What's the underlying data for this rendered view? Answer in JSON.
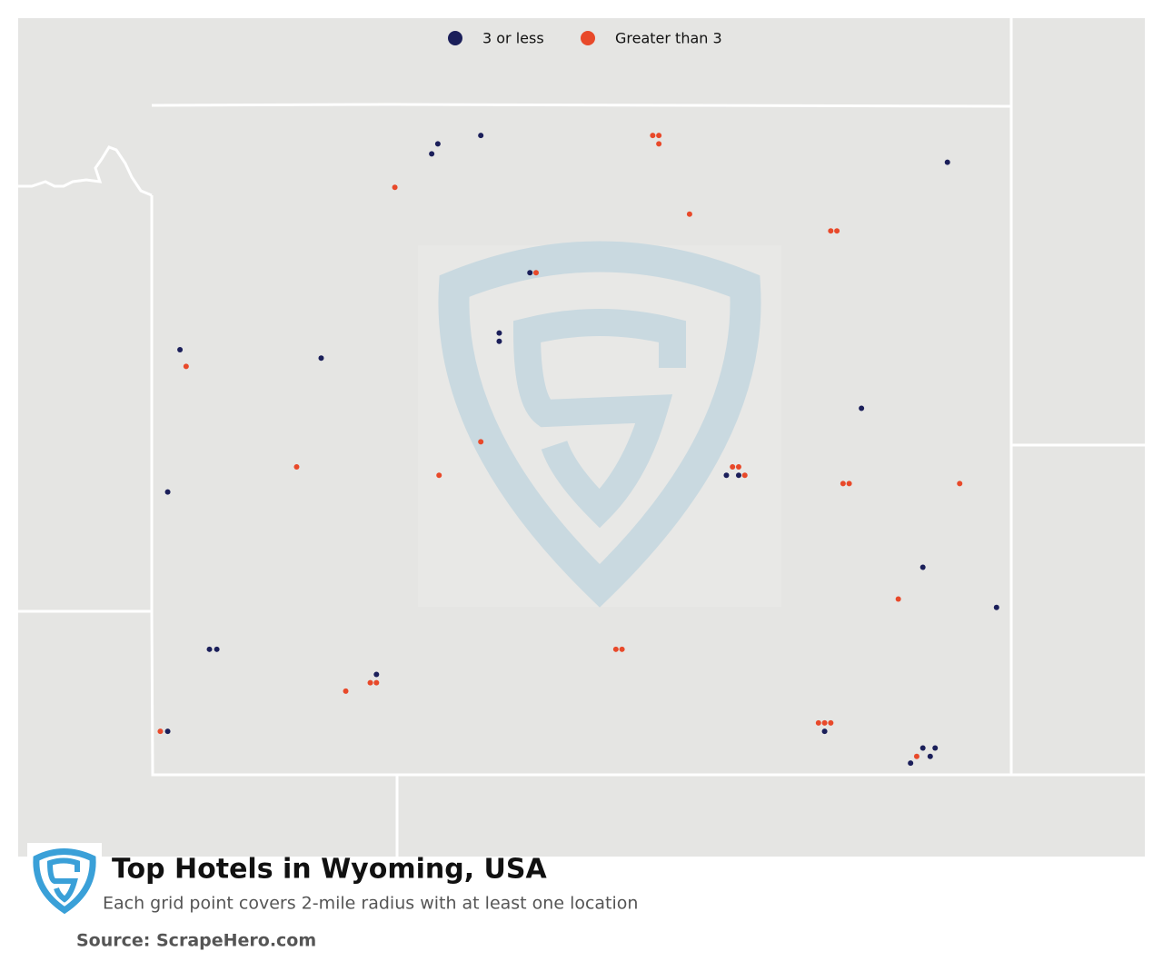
{
  "title": "Top Hotels in Wyoming, USA",
  "subtitle": "Each grid point covers 2-mile radius with at least one location",
  "source": "Source: ScrapeHero.com",
  "chart_data": {
    "type": "scatter",
    "xlim": [
      -111.05,
      -104.05
    ],
    "ylim": [
      41,
      45
    ],
    "series": [
      {
        "name": "3 or less",
        "color": "#1b1f5a",
        "x": [
          -108.72,
          -108.77,
          -108.37,
          -104.57,
          -107.97,
          -108.22,
          -108.22,
          -110.82,
          -109.67,
          -105.27,
          -110.92,
          -106.37,
          -106.27,
          -104.77,
          -104.17,
          -110.58,
          -110.52,
          -109.22,
          -110.92,
          -105.57,
          -104.77,
          -104.67,
          -104.71,
          -104.87
        ],
        "y": [
          44.77,
          44.71,
          44.82,
          44.66,
          44.0,
          43.64,
          43.59,
          43.54,
          43.49,
          43.19,
          42.69,
          42.79,
          42.79,
          42.24,
          42.0,
          41.75,
          41.75,
          41.6,
          41.26,
          41.26,
          41.16,
          41.16,
          41.11,
          41.07
        ]
      },
      {
        "name": "Greater than 3",
        "color": "#e8492a",
        "x": [
          -106.97,
          -106.92,
          -106.92,
          -109.07,
          -106.67,
          -105.52,
          -105.47,
          -107.92,
          -110.77,
          -108.37,
          -109.87,
          -108.71,
          -106.32,
          -106.27,
          -106.22,
          -105.42,
          -105.37,
          -104.47,
          -104.97,
          -107.27,
          -107.22,
          -109.27,
          -109.22,
          -109.47,
          -110.98,
          -105.62,
          -105.57,
          -105.52,
          -104.82
        ],
        "y": [
          44.82,
          44.82,
          44.77,
          44.51,
          44.35,
          44.25,
          44.25,
          44.0,
          43.44,
          42.99,
          42.84,
          42.79,
          42.84,
          42.84,
          42.79,
          42.74,
          42.74,
          42.74,
          42.05,
          41.75,
          41.75,
          41.55,
          41.55,
          41.5,
          41.26,
          41.31,
          41.31,
          41.31,
          41.11
        ]
      }
    ]
  }
}
